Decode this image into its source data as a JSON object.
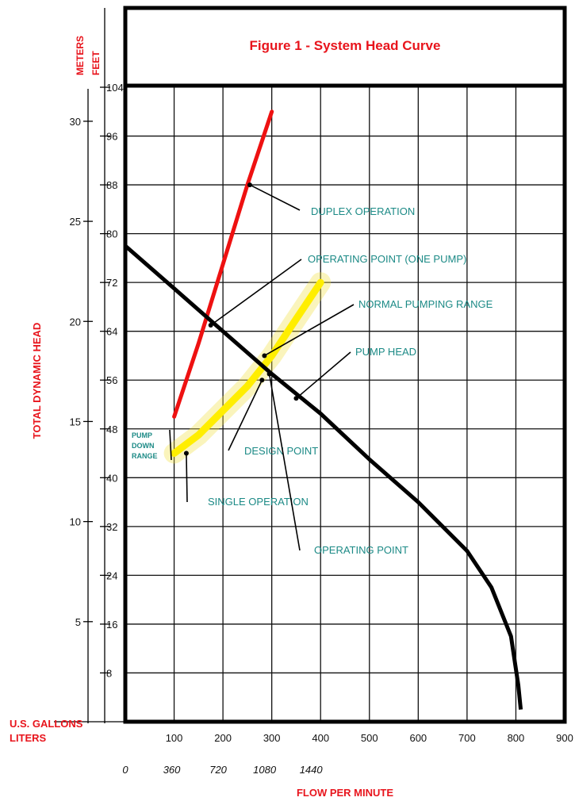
{
  "chart_data": {
    "type": "line",
    "title": "Figure 1 - System Head Curve",
    "xlabel": "FLOW PER MINUTE",
    "ylabel": "TOTAL DYNAMIC HEAD",
    "y_unit_meters_label": "METERS",
    "y_unit_feet_label": "FEET",
    "x_unit_gallons_label": "U.S. GALLONS",
    "x_unit_liters_label": "LITERS",
    "xlim": [
      0,
      900
    ],
    "ylim": [
      0,
      104
    ],
    "grid": true,
    "x_ticks_gallons": [
      "100",
      "200",
      "300",
      "400",
      "500",
      "600",
      "700",
      "800",
      "900"
    ],
    "x_ticks_liters": [
      "0",
      "360",
      "720",
      "1080",
      "1440"
    ],
    "y_ticks_feet": [
      "104",
      "96",
      "88",
      "80",
      "72",
      "64",
      "56",
      "48",
      "40",
      "32",
      "24",
      "16",
      "8"
    ],
    "y_ticks_meters": [
      "30",
      "25",
      "20",
      "15",
      "10",
      "5"
    ],
    "series": [
      {
        "name": "PUMP HEAD",
        "color": "#000000",
        "x": [
          0,
          100,
          200,
          300,
          400,
          500,
          600,
          700,
          750,
          790,
          805,
          810
        ],
        "y": [
          78,
          71,
          64,
          57,
          50.5,
          43,
          36,
          28,
          22,
          14,
          6,
          2
        ]
      },
      {
        "name": "DUPLEX OPERATION",
        "color": "#ee1111",
        "x": [
          100,
          150,
          200,
          250,
          300
        ],
        "y": [
          50,
          62,
          75,
          88,
          100
        ]
      },
      {
        "name": "NORMAL PUMPING RANGE",
        "color": "#ffee00",
        "x": [
          100,
          150,
          200,
          250,
          300,
          350,
          400
        ],
        "y": [
          44,
          47,
          51,
          55,
          60,
          66,
          72
        ]
      }
    ],
    "annotations": [
      {
        "text": "DUPLEX OPERATION",
        "x": 255,
        "y": 88
      },
      {
        "text": "OPERATING POINT (ONE PUMP)",
        "x": 175,
        "y": 65
      },
      {
        "text": "NORMAL PUMPING RANGE",
        "x": 285,
        "y": 60
      },
      {
        "text": "PUMP HEAD",
        "x": 350,
        "y": 53
      },
      {
        "text": "DESIGN POINT",
        "x": 280,
        "y": 56
      },
      {
        "text": "SINGLE OPERATION",
        "x": 125,
        "y": 44
      },
      {
        "text": "OPERATING POINT",
        "x": 295,
        "y": 57
      },
      {
        "text": "PUMP DOWN RANGE",
        "x": 100,
        "y": 46
      }
    ]
  }
}
